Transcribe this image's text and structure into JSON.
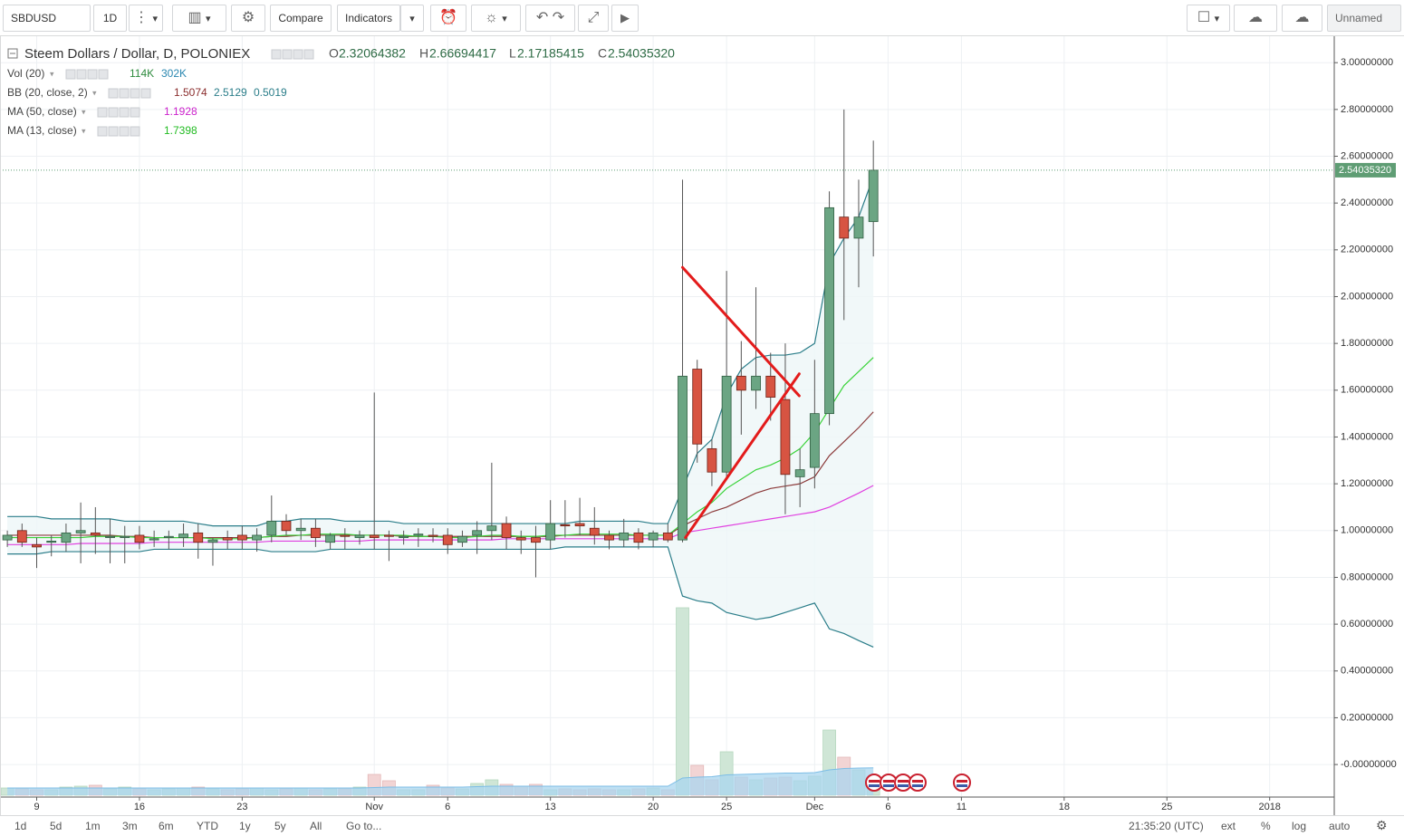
{
  "toolbar": {
    "symbol": "SBDUSD",
    "interval": "1D",
    "compare": "Compare",
    "indicators": "Indicators",
    "layout_name": "Unnamed"
  },
  "bottom_bar": {
    "ranges": [
      "1d",
      "5d",
      "1m",
      "3m",
      "6m",
      "YTD",
      "1y",
      "5y",
      "All"
    ],
    "goto": "Go to...",
    "clock": "21:35:20 (UTC)",
    "options": [
      "ext",
      "%",
      "log",
      "auto"
    ]
  },
  "chart_data": {
    "type": "candlestick",
    "title": "Steem Dollars / Dollar, D, POLONIEX",
    "ohlc_readout": [
      {
        "key": "O",
        "value": "2.32064382"
      },
      {
        "key": "H",
        "value": "2.66694417"
      },
      {
        "key": "L",
        "value": "2.17185415"
      },
      {
        "key": "C",
        "value": "2.54035320"
      }
    ],
    "candles": {
      "up_color": "#6ba583",
      "down_color": "#d75442",
      "open": [
        0.96,
        1.0,
        0.94,
        0.95,
        0.95,
        0.99,
        0.99,
        0.97,
        0.97,
        0.98,
        0.96,
        0.97,
        0.97,
        0.99,
        0.95,
        0.97,
        0.98,
        0.96,
        0.98,
        1.04,
        1.0,
        1.01,
        0.95,
        0.98,
        0.97,
        0.98,
        0.98,
        0.97,
        0.98,
        0.98,
        0.98,
        0.95,
        0.98,
        1.0,
        1.03,
        0.97,
        0.97,
        0.96,
        1.025,
        1.03,
        1.01,
        0.98,
        0.96,
        0.99,
        0.96,
        0.99,
        0.96,
        1.69,
        1.35,
        1.25,
        1.66,
        1.6,
        1.66,
        1.56,
        1.23,
        1.27,
        1.5,
        2.34,
        2.25,
        2.32064382
      ],
      "high": [
        1.0,
        1.03,
        0.97,
        0.98,
        1.03,
        1.12,
        1.1,
        1.05,
        1.02,
        1.02,
        1.0,
        1.0,
        1.03,
        1.03,
        0.97,
        1.0,
        1.02,
        1.01,
        1.15,
        1.07,
        1.05,
        1.05,
        0.99,
        1.01,
        1.0,
        1.59,
        1.0,
        1.0,
        1.01,
        1.01,
        1.01,
        1.0,
        1.04,
        1.29,
        1.06,
        1.0,
        1.02,
        1.13,
        1.13,
        1.14,
        1.1,
        1.0,
        1.05,
        1.01,
        1.0,
        1.03,
        2.5,
        1.73,
        1.39,
        2.11,
        1.81,
        2.04,
        1.76,
        1.8,
        1.35,
        1.73,
        2.45,
        2.8,
        2.5,
        2.66694417
      ],
      "low": [
        0.93,
        0.93,
        0.84,
        0.89,
        0.91,
        0.86,
        0.9,
        0.86,
        0.86,
        0.92,
        0.93,
        0.92,
        0.93,
        0.88,
        0.85,
        0.92,
        0.92,
        0.91,
        0.95,
        0.98,
        0.96,
        0.93,
        0.92,
        0.92,
        0.94,
        0.92,
        0.87,
        0.94,
        0.93,
        0.95,
        0.9,
        0.93,
        0.9,
        0.96,
        0.92,
        0.9,
        0.8,
        0.92,
        0.97,
        0.98,
        0.94,
        0.92,
        0.93,
        0.92,
        0.93,
        0.95,
        0.95,
        1.29,
        1.19,
        1.22,
        1.41,
        1.52,
        1.47,
        1.07,
        1.1,
        1.18,
        1.45,
        1.9,
        2.04,
        2.17185415
      ],
      "close": [
        0.98,
        0.95,
        0.93,
        0.955,
        0.99,
        1.0,
        0.98,
        0.975,
        0.975,
        0.95,
        0.965,
        0.975,
        0.985,
        0.95,
        0.96,
        0.96,
        0.96,
        0.98,
        1.04,
        1.0,
        1.01,
        0.97,
        0.98,
        0.975,
        0.98,
        0.97,
        0.975,
        0.975,
        0.985,
        0.975,
        0.94,
        0.975,
        1.0,
        1.02,
        0.97,
        0.96,
        0.95,
        1.03,
        1.02,
        1.02,
        0.98,
        0.96,
        0.99,
        0.95,
        0.99,
        0.96,
        1.66,
        1.37,
        1.25,
        1.66,
        1.6,
        1.66,
        1.57,
        1.24,
        1.26,
        1.5,
        2.38,
        2.25,
        2.34,
        2.5403532
      ]
    },
    "studies": [
      {
        "name": "Vol (20)",
        "readout": [
          "114K",
          "302K"
        ],
        "readout_colors": [
          "#2e8b3e",
          "#2a87b0"
        ],
        "up_color": "#cfe6d6",
        "down_color": "#f2d4d4",
        "ma_color": "#a9d5ef",
        "values": [
          80,
          70,
          60,
          60,
          90,
          100,
          110,
          70,
          90,
          70,
          60,
          70,
          80,
          90,
          70,
          60,
          70,
          80,
          60,
          70,
          80,
          60,
          70,
          70,
          90,
          230,
          160,
          60,
          60,
          110,
          80,
          70,
          130,
          170,
          120,
          100,
          120,
          60,
          70,
          60,
          70,
          60,
          60,
          70,
          80,
          60,
          2070,
          330,
          170,
          480,
          200,
          170,
          190,
          200,
          160,
          210,
          720,
          420,
          280,
          114
        ],
        "ma": [
          80,
          80,
          80,
          80,
          80,
          80,
          80,
          80,
          80,
          80,
          80,
          80,
          80,
          80,
          80,
          80,
          80,
          80,
          80,
          80,
          80,
          80,
          80,
          80,
          80,
          85,
          90,
          90,
          90,
          90,
          90,
          90,
          95,
          100,
          100,
          100,
          100,
          100,
          100,
          100,
          100,
          100,
          100,
          100,
          100,
          100,
          190,
          200,
          205,
          225,
          230,
          235,
          240,
          245,
          245,
          250,
          280,
          295,
          300,
          302
        ]
      },
      {
        "name": "BB (20, close, 2)",
        "readout": [
          "1.5074",
          "2.5129",
          "0.5019"
        ],
        "readout_colors": [
          "#8b2e2e",
          "#2a7d89",
          "#2a7d89"
        ],
        "fill": "#eef6f8",
        "lines": [
          {
            "color": "#8b3a3a",
            "values": [
              0.98,
              0.98,
              0.98,
              0.98,
              0.98,
              0.98,
              0.98,
              0.98,
              0.975,
              0.975,
              0.97,
              0.97,
              0.97,
              0.97,
              0.97,
              0.97,
              0.97,
              0.97,
              0.975,
              0.975,
              0.98,
              0.98,
              0.98,
              0.98,
              0.98,
              0.98,
              0.98,
              0.975,
              0.975,
              0.975,
              0.975,
              0.975,
              0.975,
              0.975,
              0.975,
              0.975,
              0.975,
              0.975,
              0.98,
              0.98,
              0.98,
              0.98,
              0.98,
              0.98,
              0.98,
              0.98,
              1.02,
              1.05,
              1.08,
              1.1,
              1.13,
              1.16,
              1.18,
              1.19,
              1.2,
              1.23,
              1.32,
              1.38,
              1.44,
              1.5074
            ]
          },
          {
            "color": "#2a7d89",
            "values": [
              1.06,
              1.06,
              1.06,
              1.05,
              1.05,
              1.05,
              1.05,
              1.05,
              1.04,
              1.04,
              1.04,
              1.04,
              1.04,
              1.03,
              1.02,
              1.02,
              1.02,
              1.02,
              1.04,
              1.04,
              1.05,
              1.05,
              1.05,
              1.04,
              1.04,
              1.04,
              1.04,
              1.03,
              1.03,
              1.03,
              1.03,
              1.03,
              1.03,
              1.03,
              1.03,
              1.03,
              1.03,
              1.03,
              1.03,
              1.04,
              1.04,
              1.04,
              1.04,
              1.04,
              1.03,
              1.03,
              1.18,
              1.33,
              1.39,
              1.58,
              1.69,
              1.74,
              1.75,
              1.75,
              1.76,
              1.8,
              2.14,
              2.25,
              2.34,
              2.5129
            ]
          },
          {
            "color": "#2a7d89",
            "values": [
              0.9,
              0.9,
              0.9,
              0.91,
              0.91,
              0.91,
              0.91,
              0.91,
              0.91,
              0.91,
              0.92,
              0.92,
              0.92,
              0.92,
              0.92,
              0.92,
              0.92,
              0.92,
              0.91,
              0.91,
              0.91,
              0.91,
              0.92,
              0.92,
              0.92,
              0.92,
              0.92,
              0.92,
              0.92,
              0.92,
              0.92,
              0.92,
              0.92,
              0.92,
              0.92,
              0.92,
              0.92,
              0.92,
              0.93,
              0.93,
              0.93,
              0.93,
              0.93,
              0.93,
              0.93,
              0.93,
              0.72,
              0.7,
              0.69,
              0.65,
              0.635,
              0.62,
              0.63,
              0.65,
              0.67,
              0.69,
              0.58,
              0.56,
              0.53,
              0.5019
            ]
          }
        ]
      },
      {
        "name": "MA (50, close)",
        "readout": [
          "1.1928"
        ],
        "readout_colors": [
          "#cc22cc"
        ],
        "lines": [
          {
            "color": "#e040e0",
            "values": [
              0.94,
              0.94,
              0.94,
              0.94,
              0.94,
              0.945,
              0.945,
              0.945,
              0.945,
              0.945,
              0.95,
              0.95,
              0.95,
              0.95,
              0.95,
              0.95,
              0.95,
              0.95,
              0.955,
              0.955,
              0.955,
              0.955,
              0.955,
              0.955,
              0.955,
              0.96,
              0.96,
              0.96,
              0.96,
              0.96,
              0.96,
              0.96,
              0.96,
              0.96,
              0.965,
              0.965,
              0.965,
              0.965,
              0.965,
              0.965,
              0.965,
              0.965,
              0.965,
              0.965,
              0.965,
              0.965,
              0.99,
              1.0,
              1.01,
              1.02,
              1.03,
              1.04,
              1.05,
              1.06,
              1.07,
              1.08,
              1.1,
              1.13,
              1.16,
              1.1928
            ]
          }
        ]
      },
      {
        "name": "MA (13, close)",
        "readout": [
          "1.7398"
        ],
        "readout_colors": [
          "#22bb22"
        ],
        "lines": [
          {
            "color": "#39d339",
            "values": [
              0.97,
              0.97,
              0.97,
              0.97,
              0.97,
              0.97,
              0.975,
              0.975,
              0.975,
              0.97,
              0.97,
              0.97,
              0.97,
              0.97,
              0.965,
              0.965,
              0.965,
              0.97,
              0.975,
              0.98,
              0.98,
              0.985,
              0.985,
              0.985,
              0.98,
              0.98,
              0.98,
              0.98,
              0.975,
              0.975,
              0.97,
              0.97,
              0.975,
              0.98,
              0.98,
              0.975,
              0.975,
              0.98,
              0.98,
              0.985,
              0.985,
              0.985,
              0.985,
              0.98,
              0.98,
              0.98,
              1.03,
              1.08,
              1.12,
              1.18,
              1.22,
              1.26,
              1.28,
              1.31,
              1.35,
              1.42,
              1.52,
              1.62,
              1.68,
              1.7398
            ]
          }
        ]
      }
    ],
    "drawings": [
      {
        "color": "#e31b1b",
        "points": [
          [
            46.0,
            2.125
          ],
          [
            53.95,
            1.576
          ]
        ]
      },
      {
        "color": "#e31b1b",
        "points": [
          [
            46.2,
            0.97
          ],
          [
            53.95,
            1.67
          ]
        ]
      }
    ],
    "last_price": {
      "value": 2.5403532,
      "label": "2.54035320",
      "color": "#5f9d74"
    },
    "xlim": [
      -0.5,
      90.4
    ],
    "xticks": [
      {
        "value": 2,
        "label": "9"
      },
      {
        "value": 9,
        "label": "16"
      },
      {
        "value": 16,
        "label": "23"
      },
      {
        "value": 25,
        "label": "Nov"
      },
      {
        "value": 30,
        "label": "6"
      },
      {
        "value": 37,
        "label": "13"
      },
      {
        "value": 44,
        "label": "20"
      },
      {
        "value": 49,
        "label": "25"
      },
      {
        "value": 55,
        "label": "Dec"
      },
      {
        "value": 60,
        "label": "6"
      },
      {
        "value": 65,
        "label": "11"
      },
      {
        "value": 72,
        "label": "18"
      },
      {
        "value": 79,
        "label": "25"
      },
      {
        "value": 86,
        "label": "2018"
      }
    ],
    "ylim": [
      -0.139,
      3.113
    ],
    "yticks": [
      {
        "value": 0,
        "label": "-0.00000000"
      },
      {
        "value": 0.2,
        "label": "0.20000000"
      },
      {
        "value": 0.4,
        "label": "0.40000000"
      },
      {
        "value": 0.6,
        "label": "0.60000000"
      },
      {
        "value": 0.8,
        "label": "0.80000000"
      },
      {
        "value": 1.0,
        "label": "1.00000000"
      },
      {
        "value": 1.2,
        "label": "1.20000000"
      },
      {
        "value": 1.4,
        "label": "1.40000000"
      },
      {
        "value": 1.6,
        "label": "1.60000000"
      },
      {
        "value": 1.8,
        "label": "1.80000000"
      },
      {
        "value": 2.0,
        "label": "2.00000000"
      },
      {
        "value": 2.2,
        "label": "2.20000000"
      },
      {
        "value": 2.4,
        "label": "2.40000000"
      },
      {
        "value": 2.6,
        "label": "2.60000000"
      },
      {
        "value": 2.8,
        "label": "2.80000000"
      },
      {
        "value": 3.0,
        "label": "3.00000000"
      }
    ],
    "grid": true
  }
}
